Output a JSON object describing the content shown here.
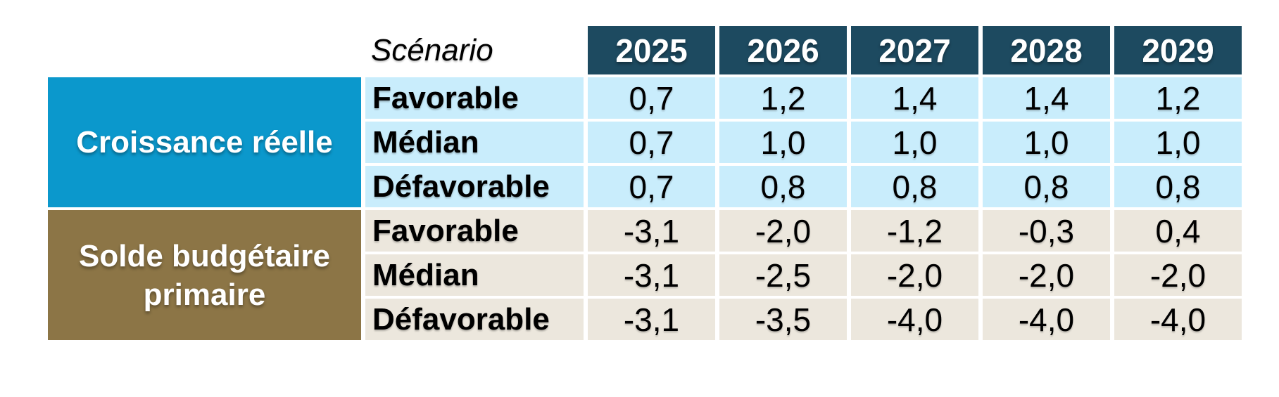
{
  "table": {
    "corner_header": "Scénario",
    "years": [
      "2025",
      "2026",
      "2027",
      "2028",
      "2029"
    ],
    "groups": [
      {
        "label": "Croissance réelle",
        "rows": [
          {
            "scenario": "Favorable",
            "values": [
              "0,7",
              "1,2",
              "1,4",
              "1,4",
              "1,2"
            ]
          },
          {
            "scenario": "Médian",
            "values": [
              "0,7",
              "1,0",
              "1,0",
              "1,0",
              "1,0"
            ]
          },
          {
            "scenario": "Défavorable",
            "values": [
              "0,7",
              "0,8",
              "0,8",
              "0,8",
              "0,8"
            ]
          }
        ]
      },
      {
        "label": "Solde budgétaire primaire",
        "rows": [
          {
            "scenario": "Favorable",
            "values": [
              "-3,1",
              "-2,0",
              "-1,2",
              "-0,3",
              "0,4"
            ]
          },
          {
            "scenario": "Médian",
            "values": [
              "-3,1",
              "-2,5",
              "-2,0",
              "-2,0",
              "-2,0"
            ]
          },
          {
            "scenario": "Défavorable",
            "values": [
              "-3,1",
              "-3,5",
              "-4,0",
              "-4,0",
              "-4,0"
            ]
          }
        ]
      }
    ]
  },
  "colors": {
    "header_bg": "#1d4a60",
    "header_text": "#ffffff",
    "growth_band_bg": "#0b98cc",
    "growth_cell_bg": "#c9edfc",
    "balance_band_bg": "#8c7546",
    "balance_cell_bg": "#ece7dd",
    "band_text": "#ffffff",
    "cell_text": "#000000"
  },
  "chart_data": {
    "type": "table",
    "title": "",
    "column_header": "Scénario",
    "categories": [
      "2025",
      "2026",
      "2027",
      "2028",
      "2029"
    ],
    "decimal_separator": ",",
    "series": [
      {
        "name": "Croissance réelle — Favorable",
        "values": [
          0.7,
          1.2,
          1.4,
          1.4,
          1.2
        ]
      },
      {
        "name": "Croissance réelle — Médian",
        "values": [
          0.7,
          1.0,
          1.0,
          1.0,
          1.0
        ]
      },
      {
        "name": "Croissance réelle — Défavorable",
        "values": [
          0.7,
          0.8,
          0.8,
          0.8,
          0.8
        ]
      },
      {
        "name": "Solde budgétaire primaire — Favorable",
        "values": [
          -3.1,
          -2.0,
          -1.2,
          -0.3,
          0.4
        ]
      },
      {
        "name": "Solde budgétaire primaire — Médian",
        "values": [
          -3.1,
          -2.5,
          -2.0,
          -2.0,
          -2.0
        ]
      },
      {
        "name": "Solde budgétaire primaire — Défavorable",
        "values": [
          -3.1,
          -3.5,
          -4.0,
          -4.0,
          -4.0
        ]
      }
    ]
  }
}
